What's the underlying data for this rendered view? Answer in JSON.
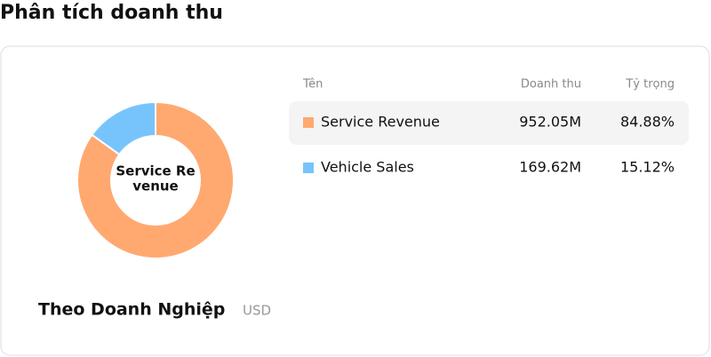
{
  "title": "Phân tích doanh thu",
  "card": {
    "subtitle": "Theo Doanh Nghiệp",
    "unit": "USD"
  },
  "table": {
    "headers": [
      "Tên",
      "Doanh thu",
      "Tỷ trọng"
    ],
    "revenue": [
      "952.05M",
      "169.62M"
    ]
  },
  "chart_data": {
    "type": "pie",
    "donut": true,
    "center_label": [
      "Service Re",
      "venue"
    ],
    "categories": [
      "Service Revenue",
      "Vehicle Sales"
    ],
    "values": [
      84.88,
      15.12
    ],
    "value_labels": [
      "84.88%",
      "15.12%"
    ],
    "colors": [
      "#ffa970",
      "#77c4fd"
    ]
  }
}
